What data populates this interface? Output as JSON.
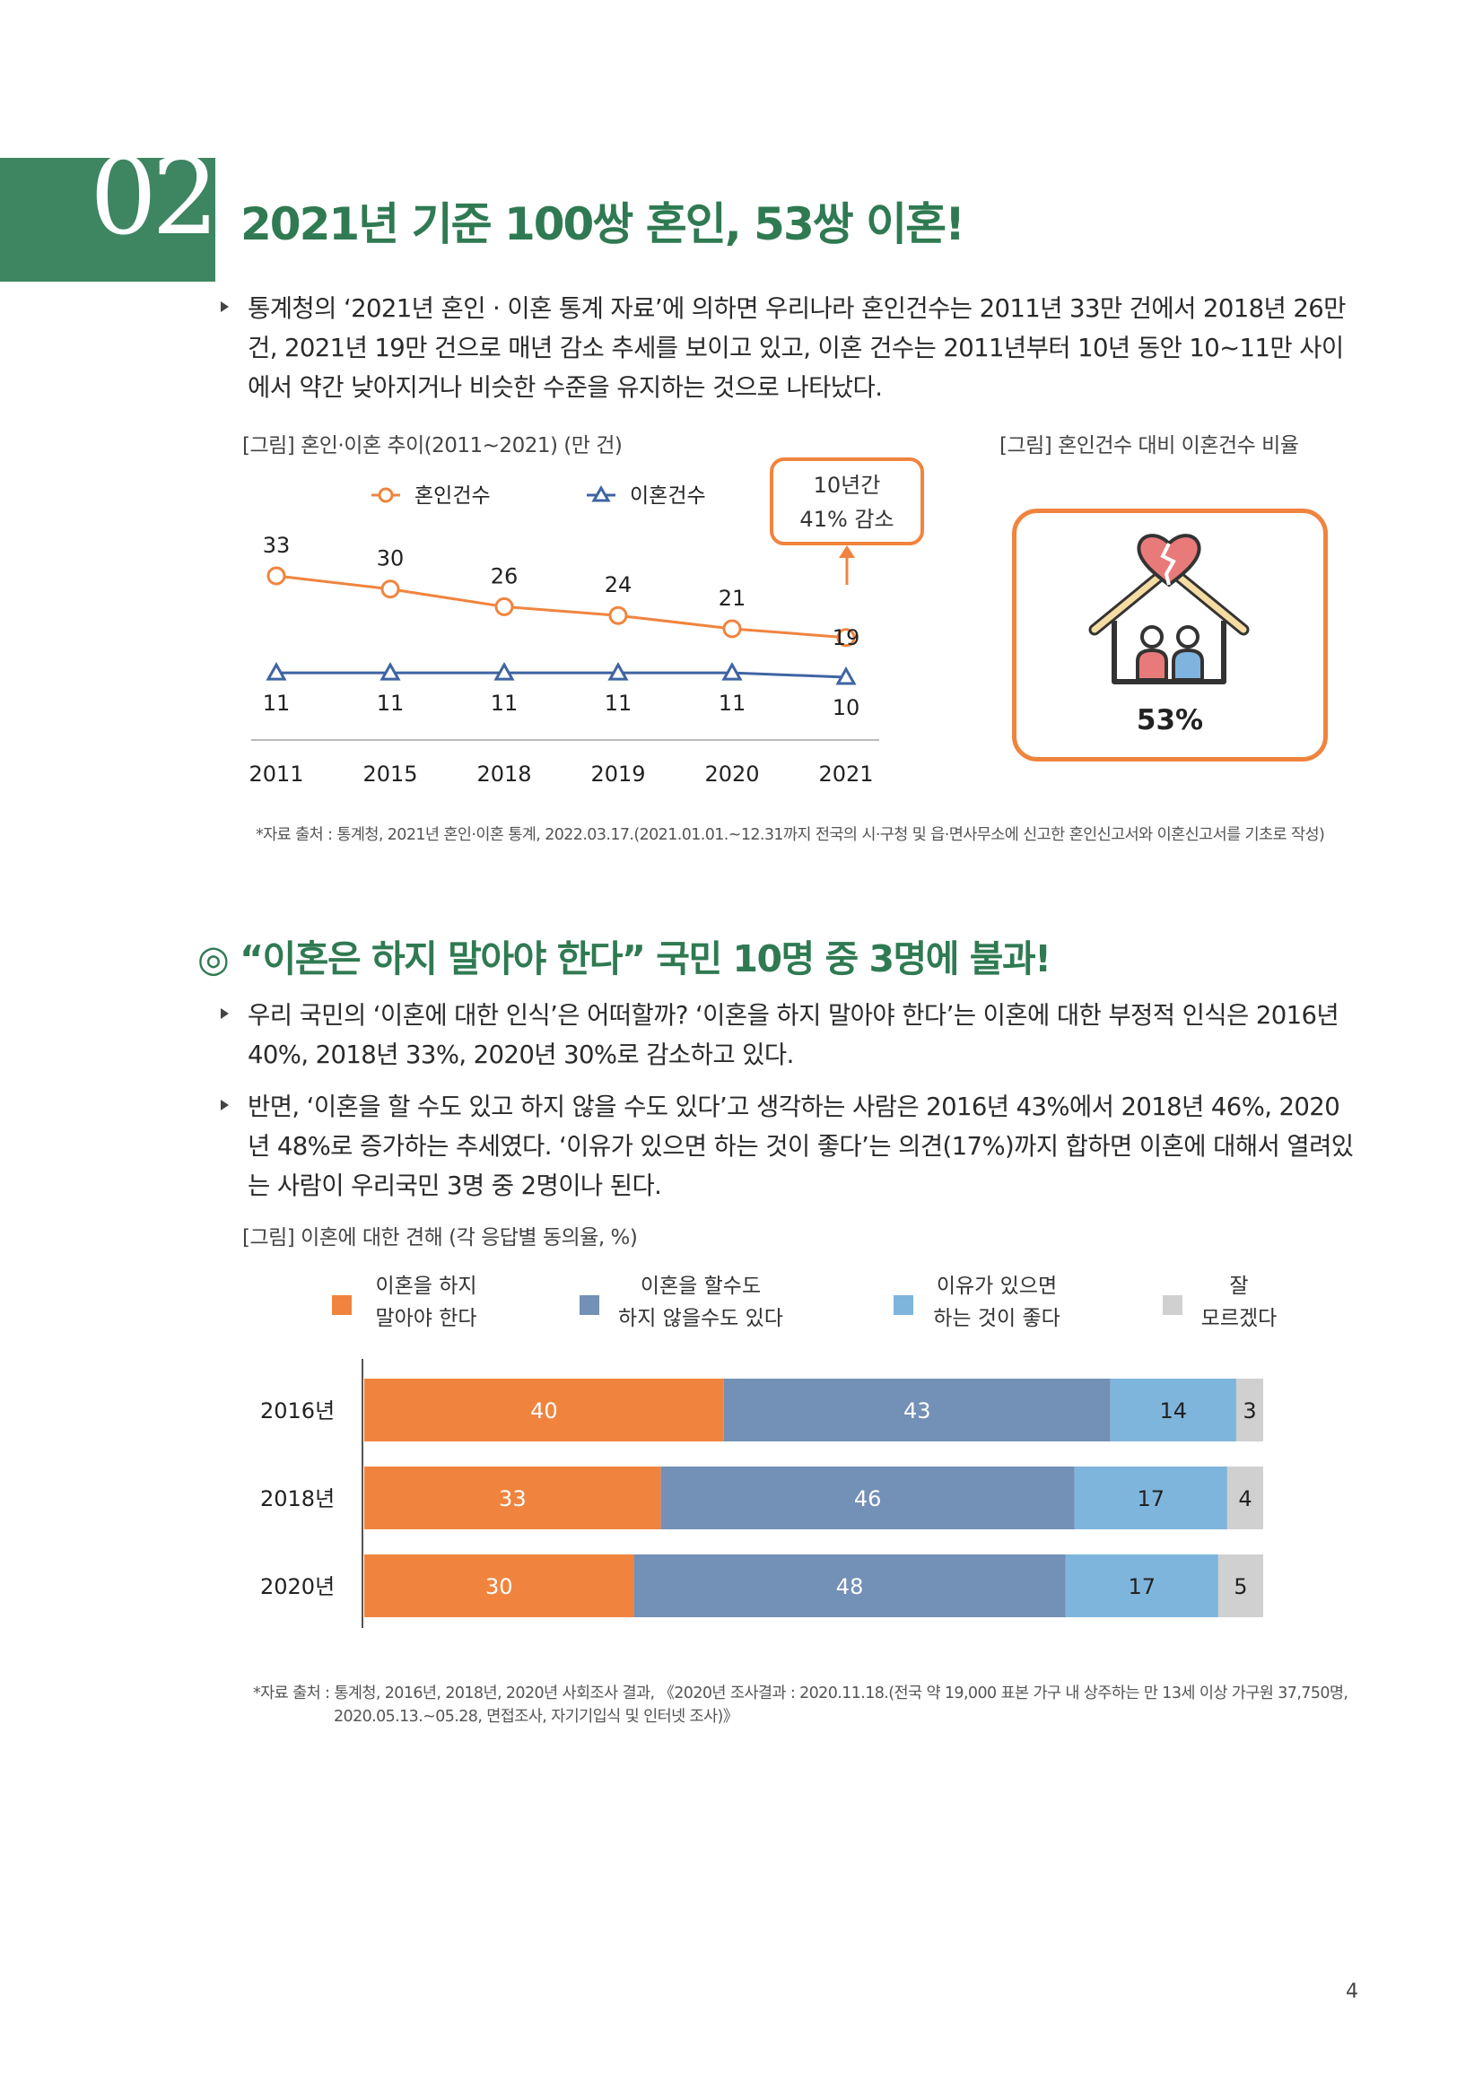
{
  "section": {
    "number": "02",
    "title": "2021년 기준 100쌍 혼인, 53쌍 이혼!"
  },
  "intro_paragraph": "통계청의 ‘2021년 혼인 · 이혼 통계 자료’에 의하면 우리나라 혼인건수는 2011년 33만 건에서 2018년 26만 건, 2021년 19만 건으로 매년 감소 추세를 보이고 있고, 이혼 건수는 2011년부터 10년 동안 10~11만 사이에서 약간 낮아지거나 비슷한 수준을 유지하는 것으로 나타났다.",
  "figure1": {
    "caption": "[그림] 혼인·이혼 추이(2011~2021) (만 건)",
    "callout_line1": "10년간",
    "callout_line2": "41% 감소"
  },
  "figure2": {
    "caption": "[그림] 혼인건수 대비 이혼건수 비율",
    "percent": "53%",
    "icon": "broken-heart-house-icon"
  },
  "source1": "*자료 출처 : 통계청, 2021년 혼인·이혼 통계, 2022.03.17.(2021.01.01.~12.31까지 전국의 시·구청 및 읍·면사무소에 신고한 혼인신고서와 이혼신고서를 기초로 작성)",
  "sub_heading": {
    "mark": "◎",
    "text": "“이혼은 하지 말아야 한다” 국민 10명 중 3명에 불과!"
  },
  "paragraph2": "우리 국민의 ‘이혼에 대한 인식’은 어떠할까? ‘이혼을 하지 말아야 한다’는 이혼에 대한 부정적 인식은 2016년 40%, 2018년 33%, 2020년 30%로 감소하고 있다.",
  "paragraph3": "반면, ‘이혼을 할 수도 있고 하지 않을 수도 있다’고 생각하는 사람은 2016년 43%에서 2018년 46%, 2020년 48%로 증가하는 추세였다. ‘이유가 있으면 하는 것이 좋다’는 의견(17%)까지 합하면 이혼에 대해서 열려있는 사람이 우리국민 3명 중 2명이나 된다.",
  "figure3": {
    "caption": "[그림] 이혼에 대한 견해 (각 응답별 동의율, %)",
    "legend": [
      {
        "line1": "이혼을 하지",
        "line2": "말아야 한다"
      },
      {
        "line1": "이혼을 할수도",
        "line2": "하지 않을수도 있다"
      },
      {
        "line1": "이유가 있으면",
        "line2": "하는 것이 좋다"
      },
      {
        "line1": "잘",
        "line2": "모르겠다"
      }
    ]
  },
  "source2_line1": "*자료 출처 : 통계청, 2016년, 2018년, 2020년 사회조사 결과, 《2020년 조사결과 : 2020.11.18.(전국 약 19,000 표본 가구 내 상주하는 만 13세 이상 가구원 37,750명,",
  "source2_line2": "2020.05.13.~05.28, 면접조사, 자기기입식 및 인터넷 조사)》",
  "page_number": "4",
  "colors": {
    "green": "#3e8561",
    "orange": "#f0843e",
    "navy_line": "#3f64a3",
    "slate": "#7390b6",
    "sky": "#7eb5dc",
    "gray": "#d0d0d0"
  },
  "chart_data": [
    {
      "type": "line",
      "x": [
        "2011",
        "2015",
        "2018",
        "2019",
        "2020",
        "2021"
      ],
      "series": [
        {
          "name": "혼인건수",
          "values": [
            33,
            30,
            26,
            24,
            21,
            19
          ],
          "color": "#f0843e",
          "marker": "circle"
        },
        {
          "name": "이혼건수",
          "values": [
            11,
            11,
            11,
            11,
            11,
            10
          ],
          "color": "#3f64a3",
          "marker": "triangle"
        }
      ],
      "ylim": [
        0,
        40
      ],
      "grid": false,
      "legend": "top"
    },
    {
      "type": "bar",
      "orientation": "horizontal-stacked",
      "categories": [
        "2016년",
        "2018년",
        "2020년"
      ],
      "series": [
        {
          "name": "이혼을 하지 말아야 한다",
          "values": [
            40,
            33,
            30
          ],
          "color": "#f0843e"
        },
        {
          "name": "이혼을 할수도 하지 않을수도 있다",
          "values": [
            43,
            46,
            48
          ],
          "color": "#7390b6"
        },
        {
          "name": "이유가 있으면 하는 것이 좋다",
          "values": [
            14,
            17,
            17
          ],
          "color": "#7eb5dc"
        },
        {
          "name": "잘 모르겠다",
          "values": [
            3,
            4,
            5
          ],
          "color": "#d0d0d0"
        }
      ],
      "xlim": [
        0,
        100
      ],
      "legend": "top"
    }
  ]
}
